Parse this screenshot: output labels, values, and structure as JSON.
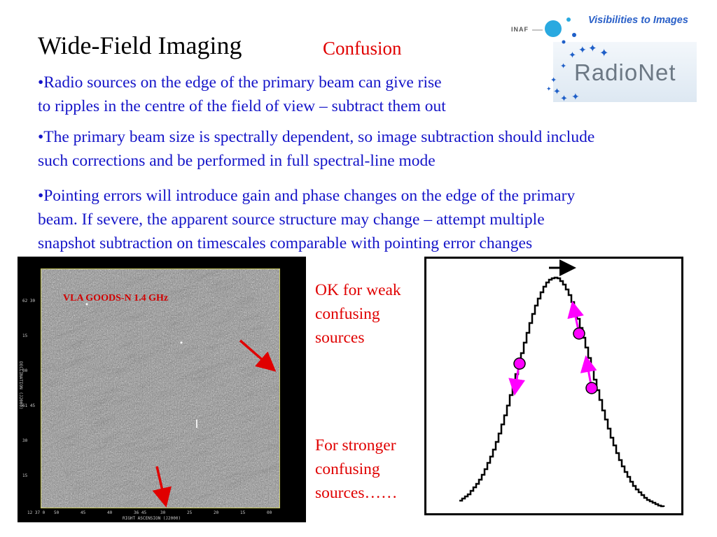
{
  "slide": {
    "title": "Wide-Field Imaging",
    "subtitle": "Confusion",
    "bullets": [
      {
        "lines": [
          "•Radio sources on the edge of the primary beam can give rise",
          "to ripples in the centre of the field of view – subtract them out"
        ]
      },
      {
        "lines": [
          "•The primary beam size is spectrally dependent, so image subtraction should include",
          "such corrections and be performed in full spectral-line mode"
        ]
      },
      {
        "lines": [
          "•Pointing errors will introduce gain and phase changes on the edge of the primary",
          "beam. If severe, the apparent source structure may change – attempt multiple",
          "snapshot subtraction on timescales comparable with pointing error changes"
        ]
      }
    ]
  },
  "logo": {
    "tagline": "Visibilities to Images",
    "inaf": "INAF",
    "name": "RadioNet",
    "colors": {
      "blue": "#2a60c8",
      "cyan": "#29a9e0",
      "gray": "#6c7884"
    }
  },
  "radio_image": {
    "label": "VLA GOODS-N 1.4 GHz",
    "x_ticks": [
      "12 37 0",
      "50",
      "45",
      "40",
      "36 45",
      "30",
      "25",
      "20",
      "15",
      "00"
    ],
    "y_ticks": [
      "62 30",
      "15",
      "00",
      "61 45",
      "30",
      "15"
    ],
    "x_axis_label": "RIGHT ASCENSION (J2000)",
    "y_axis_label": "DECLINATION (J2000)",
    "arrow_color": "#e00000"
  },
  "beam_annotations": {
    "weak_lines": [
      "OK for weak",
      "confusing",
      "sources"
    ],
    "strong_lines": [
      "For stronger",
      "confusing",
      "sources……"
    ],
    "dot_color": "#ff00ff"
  }
}
